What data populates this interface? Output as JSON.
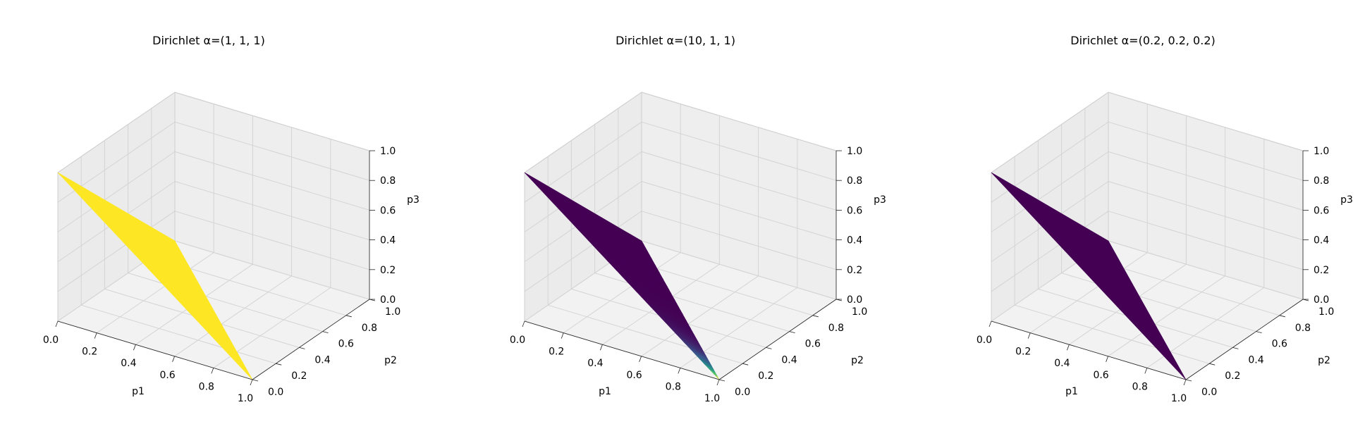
{
  "chart_data": [
    {
      "type": "surface3d",
      "title": "Dirichlet α=(1, 1, 1)",
      "xlabel": "p1",
      "ylabel": "p2",
      "zlabel": "p3",
      "xlim": [
        0,
        1
      ],
      "ylim": [
        0,
        1
      ],
      "zlim": [
        0,
        1
      ],
      "xticks": [
        "0.0",
        "0.2",
        "0.4",
        "0.6",
        "0.8",
        "1.0"
      ],
      "yticks": [
        "0.0",
        "0.2",
        "0.4",
        "0.6",
        "0.8",
        "1.0"
      ],
      "zticks": [
        "0.0",
        "0.2",
        "0.4",
        "0.6",
        "0.8",
        "1.0"
      ],
      "grid": true,
      "surface": "simplex p1+p2+p3=1",
      "colormap": "viridis",
      "alpha": [
        1,
        1,
        1
      ],
      "uniform_color": "#fde725"
    },
    {
      "type": "surface3d",
      "title": "Dirichlet α=(10, 1, 1)",
      "xlabel": "p1",
      "ylabel": "p2",
      "zlabel": "p3",
      "xlim": [
        0,
        1
      ],
      "ylim": [
        0,
        1
      ],
      "zlim": [
        0,
        1
      ],
      "xticks": [
        "0.0",
        "0.2",
        "0.4",
        "0.6",
        "0.8",
        "1.0"
      ],
      "yticks": [
        "0.0",
        "0.2",
        "0.4",
        "0.6",
        "0.8",
        "1.0"
      ],
      "zticks": [
        "0.0",
        "0.2",
        "0.4",
        "0.6",
        "0.8",
        "1.0"
      ],
      "grid": true,
      "surface": "simplex p1+p2+p3=1",
      "colormap": "viridis",
      "alpha": [
        10,
        1,
        1
      ],
      "uniform_color": "#440154"
    },
    {
      "type": "surface3d",
      "title": "Dirichlet α=(0.2, 0.2, 0.2)",
      "xlabel": "p1",
      "ylabel": "p2",
      "zlabel": "p3",
      "xlim": [
        0,
        1
      ],
      "ylim": [
        0,
        1
      ],
      "zlim": [
        0,
        1
      ],
      "xticks": [
        "0.0",
        "0.2",
        "0.4",
        "0.6",
        "0.8",
        "1.0"
      ],
      "yticks": [
        "0.0",
        "0.2",
        "0.4",
        "0.6",
        "0.8",
        "1.0"
      ],
      "zticks": [
        "0.0",
        "0.2",
        "0.4",
        "0.6",
        "0.8",
        "1.0"
      ],
      "grid": true,
      "surface": "simplex p1+p2+p3=1",
      "colormap": "viridis",
      "alpha": [
        0.2,
        0.2,
        0.2
      ],
      "uniform_color": "#440154"
    }
  ]
}
